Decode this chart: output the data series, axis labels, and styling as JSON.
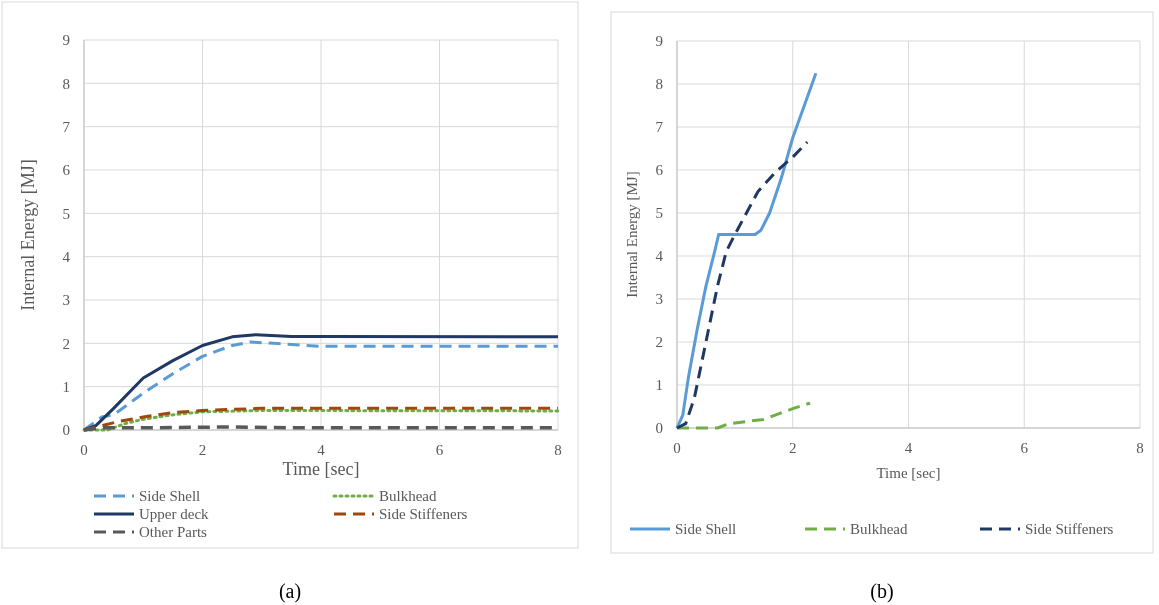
{
  "chart_data": [
    {
      "type": "line",
      "xlabel": "Time [sec]",
      "ylabel": "Internal Energy [MJ]",
      "xlim": [
        0,
        8
      ],
      "ylim": [
        0,
        9
      ],
      "xticks": [
        0,
        2,
        4,
        6,
        8
      ],
      "yticks": [
        0,
        1,
        2,
        3,
        4,
        5,
        6,
        7,
        8,
        9
      ],
      "grid": true,
      "legend": "bottom",
      "annotations": [
        "(a)"
      ],
      "series": [
        {
          "name": "Side Shell",
          "color": "#5b9bd5",
          "line_style": "dashed",
          "x": [
            0,
            0.3,
            0.5,
            1,
            1.5,
            2,
            2.5,
            2.8,
            3.2,
            4,
            8
          ],
          "values": [
            0,
            0.3,
            0.35,
            0.85,
            1.3,
            1.7,
            1.95,
            2.03,
            2,
            1.93,
            1.93
          ]
        },
        {
          "name": "Bulkhead",
          "color": "#70ad47",
          "line_style": "dotted",
          "x": [
            0,
            0.4,
            0.7,
            1,
            1.5,
            2,
            3,
            8
          ],
          "values": [
            0,
            0,
            0.15,
            0.25,
            0.35,
            0.42,
            0.45,
            0.44
          ]
        },
        {
          "name": "Upper deck",
          "color": "#203864",
          "line_style": "solid",
          "x": [
            0,
            0.2,
            0.5,
            1,
            1.5,
            2,
            2.5,
            2.9,
            3.5,
            4,
            8
          ],
          "values": [
            0,
            0.1,
            0.5,
            1.2,
            1.6,
            1.95,
            2.15,
            2.2,
            2.16,
            2.16,
            2.15
          ]
        },
        {
          "name": "Side Stiffeners",
          "color": "#9e480e",
          "line_style": "dashed",
          "x": [
            0,
            0.3,
            0.6,
            1,
            1.5,
            2,
            3,
            8
          ],
          "values": [
            0,
            0.1,
            0.2,
            0.3,
            0.4,
            0.45,
            0.5,
            0.5
          ]
        },
        {
          "name": "Other Parts",
          "color": "#595959",
          "line_style": "dashed",
          "x": [
            0,
            0.3,
            0.5,
            1,
            2.5,
            3.5,
            7.9
          ],
          "values": [
            0,
            0.05,
            0.05,
            0.05,
            0.07,
            0.05,
            0.05
          ]
        }
      ]
    },
    {
      "type": "line",
      "xlabel": "Time [sec]",
      "ylabel": "Internal Energy [MJ]",
      "xlim": [
        0,
        8
      ],
      "ylim": [
        0,
        9
      ],
      "xticks": [
        0,
        2,
        4,
        6,
        8
      ],
      "yticks": [
        0,
        1,
        2,
        3,
        4,
        5,
        6,
        7,
        8,
        9
      ],
      "grid": true,
      "legend": "bottom",
      "annotations": [
        "(b)"
      ],
      "series": [
        {
          "name": "Side Shell",
          "color": "#5b9bd5",
          "line_style": "solid",
          "x": [
            0,
            0.1,
            0.2,
            0.35,
            0.5,
            0.65,
            0.72,
            1,
            1.35,
            1.45,
            1.6,
            1.8,
            2,
            2.4
          ],
          "values": [
            0,
            0.3,
            1.2,
            2.3,
            3.3,
            4.1,
            4.5,
            4.5,
            4.5,
            4.6,
            5,
            5.8,
            6.75,
            8.25
          ]
        },
        {
          "name": "Bulkhead",
          "color": "#70ad47",
          "line_style": "dashed",
          "x": [
            0,
            0.3,
            0.7,
            0.9,
            1.5,
            1.8,
            2,
            2.3
          ],
          "values": [
            0,
            0,
            0,
            0.1,
            0.2,
            0.35,
            0.45,
            0.58
          ]
        },
        {
          "name": "Side Stiffeners",
          "color": "#203864",
          "line_style": "dashed",
          "x": [
            0,
            0.15,
            0.3,
            0.5,
            0.7,
            0.85,
            1,
            1.2,
            1.4,
            1.7,
            2,
            2.25
          ],
          "values": [
            0,
            0.1,
            0.7,
            2,
            3.3,
            4.1,
            4.5,
            5,
            5.5,
            5.95,
            6.3,
            6.65
          ]
        }
      ]
    }
  ]
}
